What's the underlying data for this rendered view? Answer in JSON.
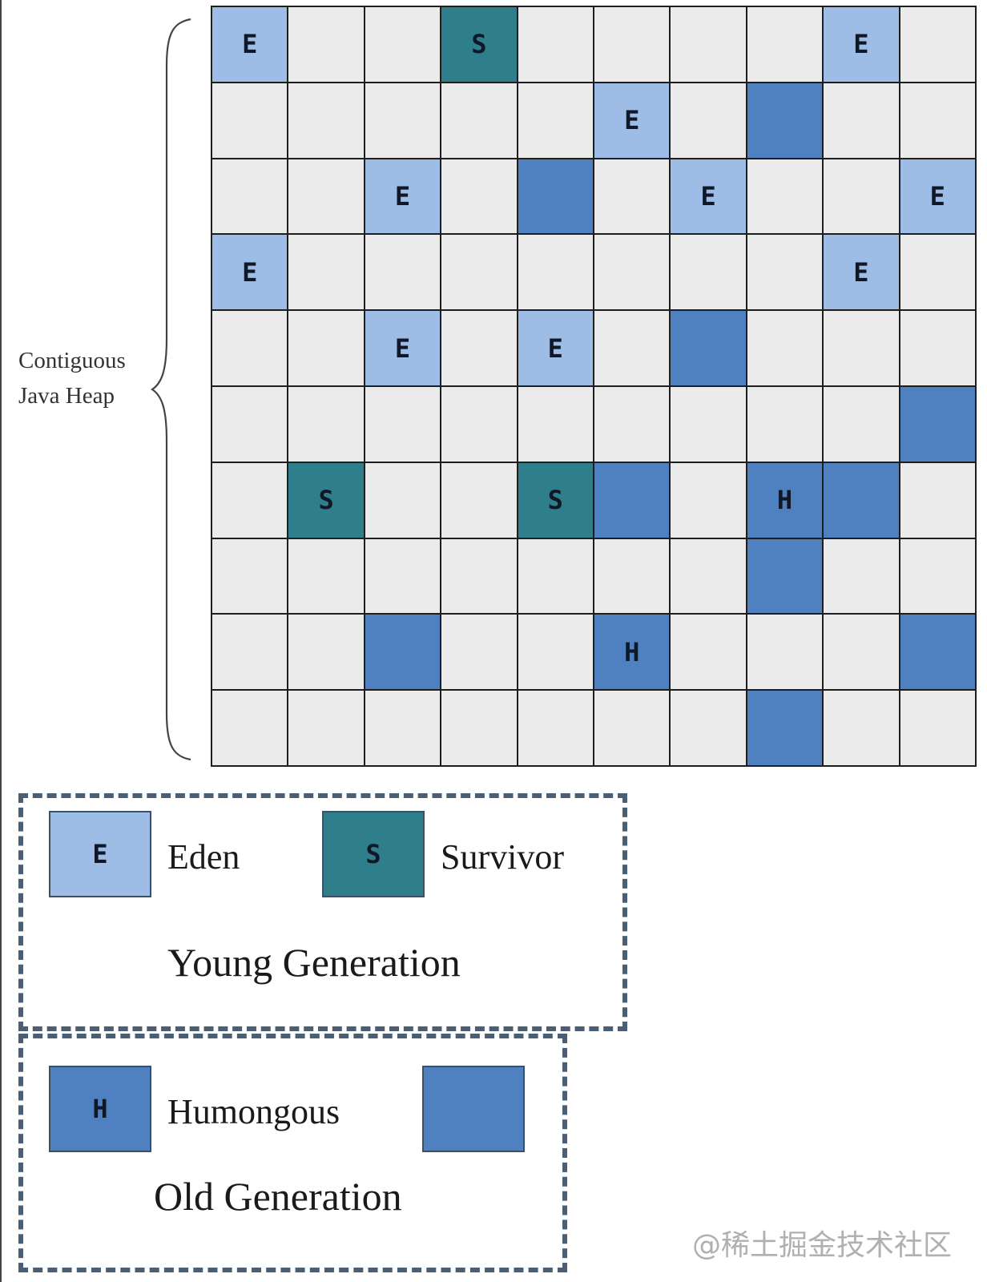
{
  "heap": {
    "label_lines": [
      "Contiguous",
      "Java Heap"
    ],
    "rows": [
      [
        "E",
        "",
        "",
        "S",
        "",
        "",
        "",
        "",
        "E",
        ""
      ],
      [
        "",
        "",
        "",
        "",
        "",
        "E",
        "",
        "O",
        "",
        ""
      ],
      [
        "",
        "",
        "E",
        "",
        "O",
        "",
        "E",
        "",
        "",
        "E"
      ],
      [
        "E",
        "",
        "",
        "",
        "",
        "",
        "",
        "",
        "E",
        ""
      ],
      [
        "",
        "",
        "E",
        "",
        "E",
        "",
        "O",
        "",
        "",
        ""
      ],
      [
        "",
        "",
        "",
        "",
        "",
        "",
        "",
        "",
        "",
        "O"
      ],
      [
        "",
        "S",
        "",
        "",
        "S",
        "O",
        "",
        "H",
        "O",
        ""
      ],
      [
        "",
        "",
        "",
        "",
        "",
        "",
        "",
        "O",
        "",
        ""
      ],
      [
        "",
        "",
        "O",
        "",
        "",
        "H",
        "",
        "",
        "",
        "O"
      ],
      [
        "",
        "",
        "",
        "",
        "",
        "",
        "",
        "O",
        "",
        ""
      ]
    ]
  },
  "colors": {
    "eden": "#9dbde6",
    "survivor": "#2f7e8c",
    "old": "#4f80c0",
    "free": "#ebebeb"
  },
  "legend": {
    "young": {
      "title": "Young Generation",
      "eden": {
        "letter": "E",
        "label": "Eden"
      },
      "survivor": {
        "letter": "S",
        "label": "Survivor"
      }
    },
    "old": {
      "title": "Old Generation",
      "humongous": {
        "letter": "H",
        "label": "Humongous"
      }
    }
  },
  "watermark": "@稀土掘金技术社区"
}
